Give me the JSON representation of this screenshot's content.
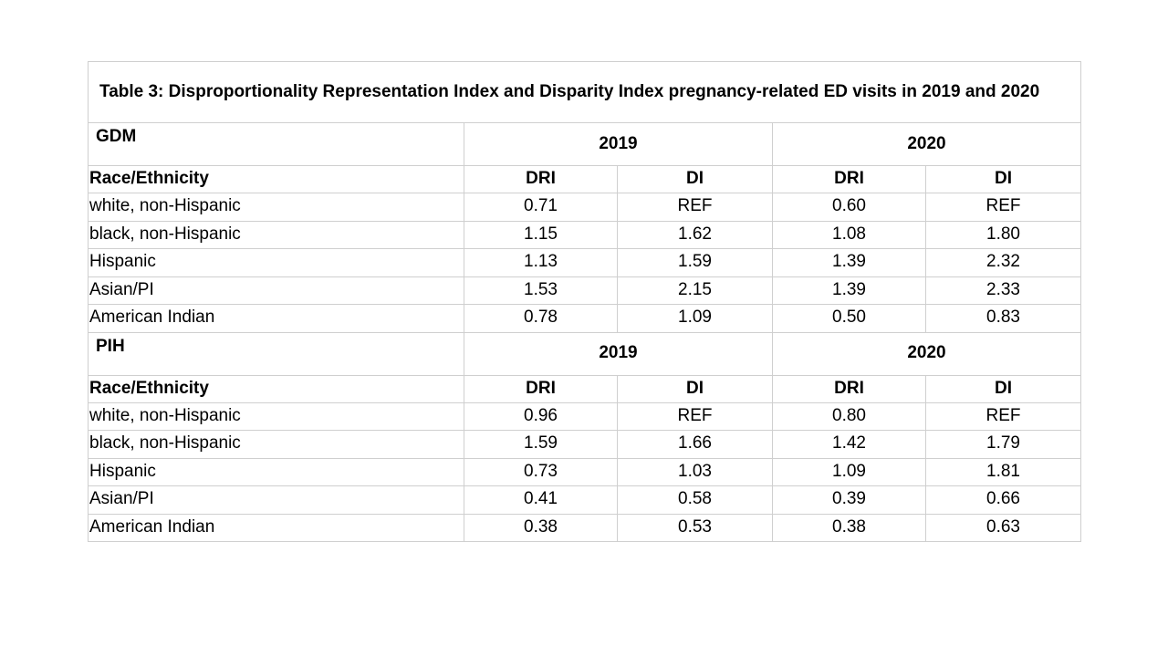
{
  "table": {
    "title": "Table 3: Disproportionality Representation Index and Disparity Index pregnancy-related ED visits in 2019 and 2020",
    "sections": [
      {
        "label": "GDM",
        "years": [
          "2019",
          "2020"
        ],
        "row_header": "Race/Ethnicity",
        "col_headers": [
          "DRI",
          "DI",
          "DRI",
          "DI"
        ],
        "rows": [
          {
            "race": "white, non-Hispanic",
            "values": [
              "0.71",
              "REF",
              "0.60",
              "REF"
            ]
          },
          {
            "race": "black, non-Hispanic",
            "values": [
              "1.15",
              "1.62",
              "1.08",
              "1.80"
            ]
          },
          {
            "race": "Hispanic",
            "values": [
              "1.13",
              "1.59",
              "1.39",
              "2.32"
            ]
          },
          {
            "race": "Asian/PI",
            "values": [
              "1.53",
              "2.15",
              "1.39",
              "2.33"
            ]
          },
          {
            "race": "American Indian",
            "values": [
              "0.78",
              "1.09",
              "0.50",
              "0.83"
            ]
          }
        ]
      },
      {
        "label": "PIH",
        "years": [
          "2019",
          "2020"
        ],
        "row_header": "Race/Ethnicity",
        "col_headers": [
          "DRI",
          "DI",
          "DRI",
          "DI"
        ],
        "rows": [
          {
            "race": "white, non-Hispanic",
            "values": [
              "0.96",
              "REF",
              "0.80",
              "REF"
            ]
          },
          {
            "race": "black, non-Hispanic",
            "values": [
              "1.59",
              "1.66",
              "1.42",
              "1.79"
            ]
          },
          {
            "race": "Hispanic",
            "values": [
              "0.73",
              "1.03",
              "1.09",
              "1.81"
            ]
          },
          {
            "race": "Asian/PI",
            "values": [
              "0.41",
              "0.58",
              "0.39",
              "0.66"
            ]
          },
          {
            "race": "American Indian",
            "values": [
              "0.38",
              "0.53",
              "0.38",
              "0.63"
            ]
          }
        ]
      }
    ]
  }
}
